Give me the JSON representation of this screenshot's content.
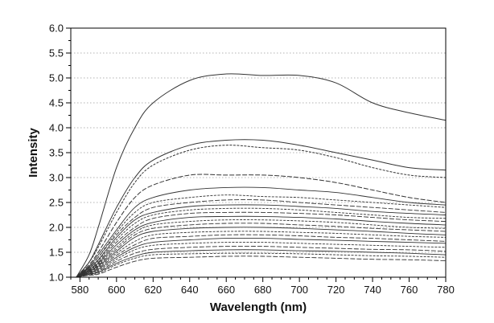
{
  "chart_data": {
    "type": "line",
    "title": "",
    "xlabel": "Wavelength (nm)",
    "ylabel": "Intensity",
    "xlim": [
      575,
      780
    ],
    "ylim": [
      1.0,
      6.0
    ],
    "x_ticks": [
      580,
      600,
      620,
      640,
      660,
      680,
      700,
      720,
      740,
      760,
      780
    ],
    "x_tick_labels": [
      "580",
      "600",
      "620",
      "640",
      "660",
      "680",
      "700",
      "720",
      "740",
      "760",
      "780"
    ],
    "y_ticks": [
      1.0,
      1.5,
      2.0,
      2.5,
      3.0,
      3.5,
      4.0,
      4.5,
      5.0,
      5.5,
      6.0
    ],
    "y_tick_labels": [
      "1.0",
      "1.5",
      "2.0",
      "2.5",
      "3.0",
      "3.5",
      "4.0",
      "4.5",
      "5.0",
      "5.5",
      "6.0"
    ],
    "grid": "horizontal-dotted",
    "legend": "none",
    "line_color": "#333333",
    "x": [
      578,
      585,
      590,
      600,
      610,
      620,
      640,
      660,
      680,
      700,
      720,
      740,
      760,
      780
    ],
    "series": [
      {
        "values": [
          1.0,
          1.45,
          2.0,
          3.2,
          4.0,
          4.5,
          4.95,
          5.08,
          5.05,
          5.05,
          4.9,
          4.5,
          4.3,
          4.15
        ]
      },
      {
        "values": [
          1.0,
          1.3,
          1.65,
          2.4,
          3.0,
          3.35,
          3.65,
          3.75,
          3.75,
          3.65,
          3.5,
          3.35,
          3.2,
          3.15
        ]
      },
      {
        "values": [
          1.0,
          1.3,
          1.6,
          2.3,
          2.9,
          3.25,
          3.55,
          3.65,
          3.6,
          3.55,
          3.4,
          3.2,
          3.05,
          3.0
        ]
      },
      {
        "values": [
          1.0,
          1.25,
          1.5,
          2.1,
          2.6,
          2.85,
          3.05,
          3.05,
          3.05,
          3.0,
          2.9,
          2.75,
          2.6,
          2.5
        ]
      },
      {
        "values": [
          1.0,
          1.22,
          1.45,
          1.95,
          2.4,
          2.6,
          2.75,
          2.8,
          2.8,
          2.75,
          2.7,
          2.6,
          2.5,
          2.45
        ]
      },
      {
        "values": [
          1.0,
          1.2,
          1.4,
          1.9,
          2.3,
          2.5,
          2.6,
          2.65,
          2.62,
          2.6,
          2.55,
          2.5,
          2.45,
          2.4
        ]
      },
      {
        "values": [
          1.0,
          1.2,
          1.4,
          1.85,
          2.2,
          2.4,
          2.5,
          2.55,
          2.55,
          2.5,
          2.45,
          2.4,
          2.35,
          2.3
        ]
      },
      {
        "values": [
          1.0,
          1.18,
          1.35,
          1.8,
          2.15,
          2.3,
          2.42,
          2.45,
          2.45,
          2.42,
          2.38,
          2.32,
          2.28,
          2.25
        ]
      },
      {
        "values": [
          1.0,
          1.18,
          1.33,
          1.75,
          2.08,
          2.25,
          2.35,
          2.38,
          2.38,
          2.35,
          2.3,
          2.25,
          2.2,
          2.18
        ]
      },
      {
        "values": [
          1.0,
          1.16,
          1.3,
          1.7,
          2.0,
          2.18,
          2.28,
          2.3,
          2.3,
          2.28,
          2.25,
          2.2,
          2.15,
          2.12
        ]
      },
      {
        "values": [
          1.0,
          1.15,
          1.28,
          1.65,
          1.95,
          2.1,
          2.2,
          2.22,
          2.22,
          2.2,
          2.17,
          2.12,
          2.08,
          2.05
        ]
      },
      {
        "values": [
          1.0,
          1.14,
          1.26,
          1.6,
          1.9,
          2.05,
          2.12,
          2.15,
          2.15,
          2.13,
          2.1,
          2.05,
          2.0,
          1.98
        ]
      },
      {
        "values": [
          1.0,
          1.13,
          1.24,
          1.56,
          1.85,
          1.98,
          2.05,
          2.08,
          2.08,
          2.05,
          2.02,
          1.98,
          1.95,
          1.92
        ]
      },
      {
        "values": [
          1.0,
          1.12,
          1.22,
          1.52,
          1.8,
          1.92,
          1.98,
          2.0,
          2.0,
          1.98,
          1.95,
          1.92,
          1.88,
          1.85
        ]
      },
      {
        "values": [
          1.0,
          1.11,
          1.2,
          1.48,
          1.72,
          1.85,
          1.9,
          1.92,
          1.92,
          1.9,
          1.88,
          1.85,
          1.82,
          1.8
        ]
      },
      {
        "values": [
          1.0,
          1.1,
          1.18,
          1.44,
          1.65,
          1.78,
          1.82,
          1.85,
          1.85,
          1.83,
          1.8,
          1.78,
          1.75,
          1.72
        ]
      },
      {
        "values": [
          1.0,
          1.09,
          1.16,
          1.4,
          1.6,
          1.7,
          1.75,
          1.78,
          1.78,
          1.76,
          1.74,
          1.72,
          1.7,
          1.68
        ]
      },
      {
        "values": [
          1.0,
          1.08,
          1.14,
          1.36,
          1.55,
          1.64,
          1.68,
          1.7,
          1.7,
          1.68,
          1.66,
          1.64,
          1.62,
          1.6
        ]
      },
      {
        "values": [
          1.0,
          1.07,
          1.12,
          1.32,
          1.48,
          1.56,
          1.6,
          1.62,
          1.62,
          1.6,
          1.58,
          1.56,
          1.55,
          1.52
        ]
      },
      {
        "values": [
          1.0,
          1.06,
          1.1,
          1.28,
          1.42,
          1.5,
          1.53,
          1.55,
          1.55,
          1.53,
          1.52,
          1.5,
          1.48,
          1.45
        ]
      },
      {
        "values": [
          1.0,
          1.05,
          1.08,
          1.25,
          1.38,
          1.45,
          1.47,
          1.48,
          1.48,
          1.47,
          1.45,
          1.43,
          1.42,
          1.4
        ]
      },
      {
        "values": [
          1.0,
          1.04,
          1.06,
          1.2,
          1.32,
          1.38,
          1.4,
          1.42,
          1.42,
          1.4,
          1.38,
          1.36,
          1.35,
          1.33
        ]
      }
    ]
  }
}
